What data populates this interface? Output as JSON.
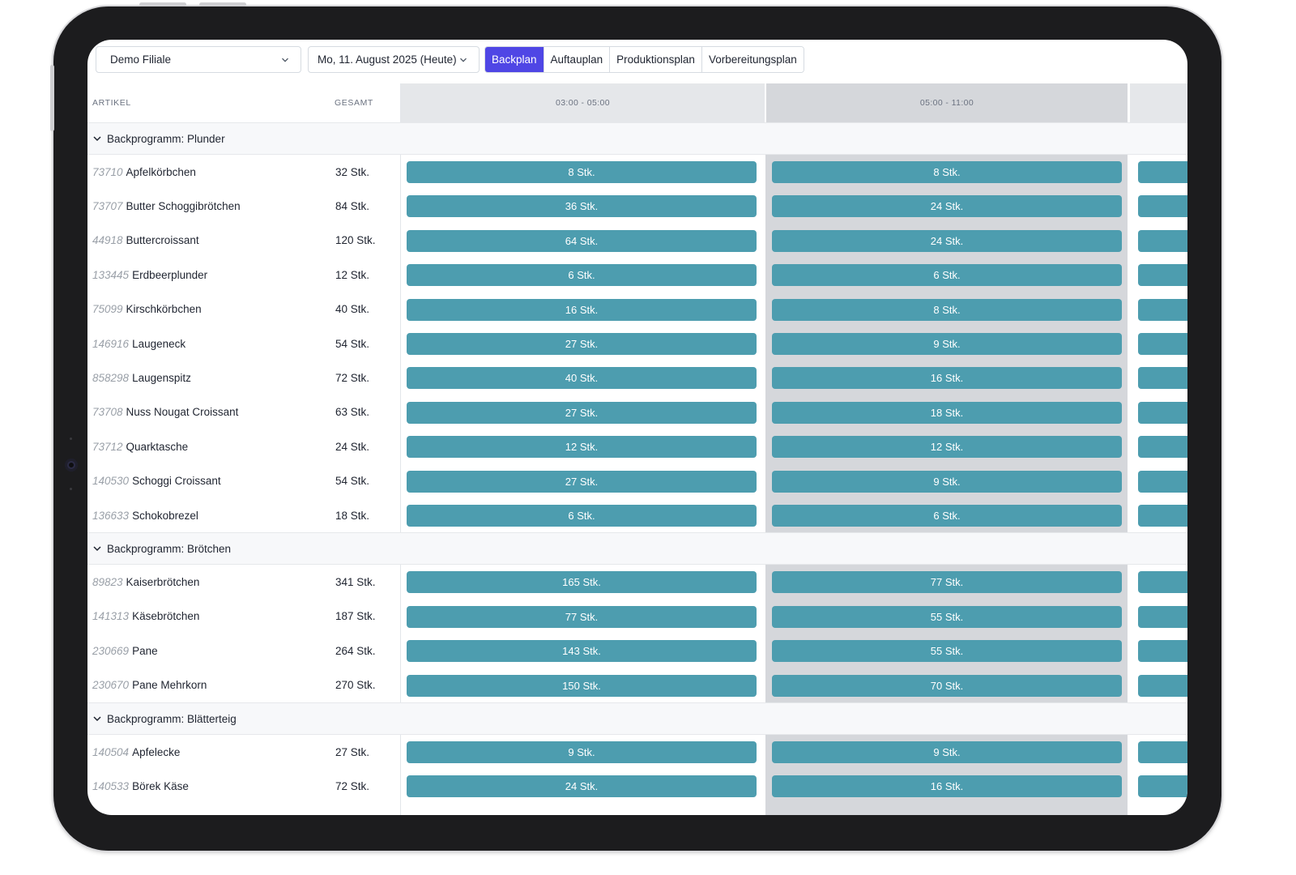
{
  "toolbar": {
    "filiale": "Demo Filiale",
    "date": "Mo, 11. August 2025 (Heute)",
    "tabs": [
      {
        "label": "Backplan",
        "active": true
      },
      {
        "label": "Auftauplan",
        "active": false
      },
      {
        "label": "Produktionsplan",
        "active": false
      },
      {
        "label": "Vorbereitungsplan",
        "active": false
      }
    ]
  },
  "table": {
    "headers": {
      "artikel": "ARTIKEL",
      "gesamt": "GESAMT",
      "slot1": "03:00 - 05:00",
      "slot2": "05:00 - 11:00"
    },
    "groups": [
      {
        "label": "Backprogramm: Plunder",
        "rows": [
          {
            "num": "73710",
            "name": "Apfelkörbchen",
            "total": "32 Stk.",
            "s1": "8 Stk.",
            "s2": "8 Stk."
          },
          {
            "num": "73707",
            "name": "Butter Schoggibrötchen",
            "total": "84 Stk.",
            "s1": "36 Stk.",
            "s2": "24 Stk."
          },
          {
            "num": "44918",
            "name": "Buttercroissant",
            "total": "120 Stk.",
            "s1": "64 Stk.",
            "s2": "24 Stk."
          },
          {
            "num": "133445",
            "name": "Erdbeerplunder",
            "total": "12 Stk.",
            "s1": "6 Stk.",
            "s2": "6 Stk."
          },
          {
            "num": "75099",
            "name": "Kirschkörbchen",
            "total": "40 Stk.",
            "s1": "16 Stk.",
            "s2": "8 Stk."
          },
          {
            "num": "146916",
            "name": "Laugeneck",
            "total": "54 Stk.",
            "s1": "27 Stk.",
            "s2": "9 Stk."
          },
          {
            "num": "858298",
            "name": "Laugenspitz",
            "total": "72 Stk.",
            "s1": "40 Stk.",
            "s2": "16 Stk."
          },
          {
            "num": "73708",
            "name": "Nuss Nougat Croissant",
            "total": "63 Stk.",
            "s1": "27 Stk.",
            "s2": "18 Stk."
          },
          {
            "num": "73712",
            "name": "Quarktasche",
            "total": "24 Stk.",
            "s1": "12 Stk.",
            "s2": "12 Stk."
          },
          {
            "num": "140530",
            "name": "Schoggi Croissant",
            "total": "54 Stk.",
            "s1": "27 Stk.",
            "s2": "9 Stk."
          },
          {
            "num": "136633",
            "name": "Schokobrezel",
            "total": "18 Stk.",
            "s1": "6 Stk.",
            "s2": "6 Stk."
          }
        ]
      },
      {
        "label": "Backprogramm: Brötchen",
        "rows": [
          {
            "num": "89823",
            "name": "Kaiserbrötchen",
            "total": "341 Stk.",
            "s1": "165 Stk.",
            "s2": "77 Stk."
          },
          {
            "num": "141313",
            "name": "Käsebrötchen",
            "total": "187 Stk.",
            "s1": "77 Stk.",
            "s2": "55 Stk."
          },
          {
            "num": "230669",
            "name": "Pane",
            "total": "264 Stk.",
            "s1": "143 Stk.",
            "s2": "55 Stk."
          },
          {
            "num": "230670",
            "name": "Pane Mehrkorn",
            "total": "270 Stk.",
            "s1": "150 Stk.",
            "s2": "70 Stk."
          }
        ]
      },
      {
        "label": "Backprogramm: Blätterteig",
        "rows": [
          {
            "num": "140504",
            "name": "Apfelecke",
            "total": "27 Stk.",
            "s1": "9 Stk.",
            "s2": "9 Stk."
          },
          {
            "num": "140533",
            "name": "Börek Käse",
            "total": "72 Stk.",
            "s1": "24 Stk.",
            "s2": "16 Stk."
          }
        ]
      }
    ]
  },
  "colors": {
    "accent": "#4f46e5",
    "bar": "#4d9daf"
  },
  "icons": [
    "chevron-down-icon"
  ]
}
